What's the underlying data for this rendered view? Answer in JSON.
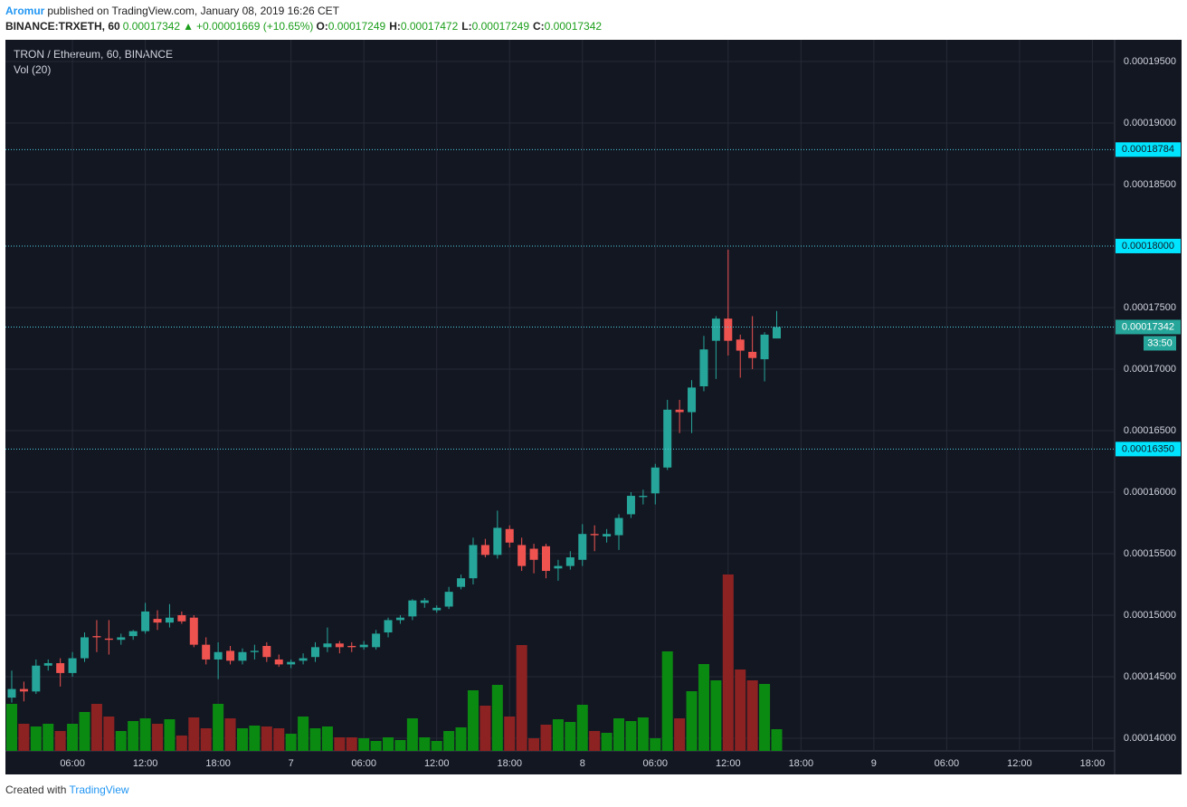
{
  "header": {
    "author": "Aromur",
    "published": "published on TradingView.com, January 08, 2019 16:26 CET",
    "symbol": "BINANCE:TRXETH, 60",
    "last": "0.00017342",
    "arrow": "▲",
    "change": "+0.00001669 (+10.65%)",
    "ohlc": [
      {
        "label": "O:",
        "value": "0.00017249"
      },
      {
        "label": "H:",
        "value": "0.00017472"
      },
      {
        "label": "L:",
        "value": "0.00017249"
      },
      {
        "label": "C:",
        "value": "0.00017342"
      }
    ]
  },
  "chart_data": {
    "type": "candlestick",
    "title": "TRON / Ethereum, 60, BINANCE",
    "volume_label": "Vol (20)",
    "countdown": "33:50",
    "up_color": "#26a69a",
    "down_color": "#ef5350",
    "volume_up_color": "#0b8a12",
    "volume_down_color": "#8c2222",
    "grid": true,
    "x": [
      1,
      2,
      3,
      4,
      5,
      6,
      7,
      8,
      9,
      10,
      11,
      12,
      13,
      14,
      15,
      16,
      17,
      18,
      19,
      20,
      21,
      22,
      23,
      24,
      25,
      26,
      27,
      28,
      29,
      30,
      31,
      32,
      33,
      34,
      35,
      36,
      37,
      38,
      39,
      40,
      41,
      42,
      43,
      44,
      45,
      46,
      47,
      48,
      49,
      50,
      51,
      52,
      53,
      54,
      55,
      56,
      57,
      58,
      59,
      60,
      61,
      62,
      63,
      64
    ],
    "open": [
      0.0001433,
      0.000144,
      0.0001438,
      0.0001459,
      0.0001461,
      0.0001453,
      0.0001465,
      0.0001483,
      0.0001481,
      0.000148,
      0.0001483,
      0.0001487,
      0.0001497,
      0.0001494,
      0.00015,
      0.0001498,
      0.0001476,
      0.0001464,
      0.0001471,
      0.0001463,
      0.000147,
      0.0001475,
      0.0001464,
      0.000146,
      0.0001463,
      0.0001466,
      0.0001474,
      0.0001477,
      0.0001475,
      0.0001474,
      0.0001474,
      0.0001486,
      0.0001496,
      0.0001499,
      0.000151,
      0.0001504,
      0.0001507,
      0.0001523,
      0.000153,
      0.0001557,
      0.0001549,
      0.000157,
      0.0001557,
      0.0001554,
      0.0001556,
      0.0001538,
      0.000154,
      0.0001545,
      0.0001566,
      0.0001564,
      0.0001565,
      0.0001582,
      0.0001596,
      0.0001599,
      0.000162,
      0.0001667,
      0.0001665,
      0.0001686,
      0.0001723,
      0.0001741,
      0.0001724,
      0.0001714,
      0.0001708,
      0.00017249
    ],
    "high": [
      0.0001455,
      0.0001446,
      0.0001464,
      0.0001464,
      0.0001465,
      0.000147,
      0.0001486,
      0.0001496,
      0.0001496,
      0.0001485,
      0.0001488,
      0.000151,
      0.0001504,
      0.0001509,
      0.0001503,
      0.00015,
      0.0001482,
      0.0001478,
      0.0001475,
      0.0001473,
      0.0001476,
      0.0001478,
      0.0001468,
      0.0001464,
      0.0001469,
      0.0001478,
      0.000149,
      0.0001479,
      0.0001478,
      0.0001479,
      0.0001488,
      0.0001498,
      0.00015,
      0.0001513,
      0.0001514,
      0.0001508,
      0.0001523,
      0.0001533,
      0.0001563,
      0.0001562,
      0.0001585,
      0.0001573,
      0.0001563,
      0.0001558,
      0.0001558,
      0.0001545,
      0.0001552,
      0.0001574,
      0.0001573,
      0.000157,
      0.0001582,
      0.00016,
      0.0001602,
      0.0001623,
      0.0001675,
      0.0001675,
      0.0001691,
      0.0001727,
      0.0001743,
      0.0001797,
      0.0001728,
      0.0001743,
      0.000173,
      0.00017472
    ],
    "low": [
      0.0001429,
      0.000143,
      0.0001436,
      0.0001455,
      0.0001442,
      0.000145,
      0.0001462,
      0.000147,
      0.0001468,
      0.0001476,
      0.000148,
      0.0001485,
      0.0001488,
      0.000149,
      0.0001493,
      0.0001474,
      0.000146,
      0.0001448,
      0.000146,
      0.000146,
      0.0001464,
      0.0001462,
      0.0001458,
      0.0001457,
      0.000146,
      0.0001462,
      0.000147,
      0.0001469,
      0.000147,
      0.0001472,
      0.0001472,
      0.0001482,
      0.0001493,
      0.0001496,
      0.0001506,
      0.0001502,
      0.0001505,
      0.0001521,
      0.0001525,
      0.0001547,
      0.0001546,
      0.0001555,
      0.0001536,
      0.0001534,
      0.000153,
      0.0001528,
      0.0001537,
      0.000154,
      0.0001552,
      0.0001559,
      0.0001553,
      0.0001579,
      0.000159,
      0.000159,
      0.0001618,
      0.0001648,
      0.0001648,
      0.0001682,
      0.0001692,
      0.0001711,
      0.0001693,
      0.00017,
      0.000169,
      0.00017249
    ],
    "close": [
      0.000144,
      0.0001438,
      0.0001459,
      0.0001461,
      0.0001453,
      0.0001465,
      0.0001482,
      0.0001482,
      0.000148,
      0.0001482,
      0.0001487,
      0.0001503,
      0.0001494,
      0.0001498,
      0.0001495,
      0.0001476,
      0.0001464,
      0.000147,
      0.0001463,
      0.000147,
      0.0001471,
      0.0001466,
      0.000146,
      0.0001462,
      0.0001465,
      0.0001474,
      0.0001477,
      0.0001474,
      0.0001474,
      0.0001476,
      0.0001485,
      0.0001496,
      0.0001498,
      0.0001512,
      0.0001512,
      0.0001506,
      0.0001519,
      0.000153,
      0.0001557,
      0.0001549,
      0.0001571,
      0.0001559,
      0.000154,
      0.0001545,
      0.0001536,
      0.000154,
      0.0001547,
      0.0001566,
      0.0001565,
      0.0001566,
      0.0001579,
      0.0001597,
      0.0001597,
      0.000162,
      0.0001667,
      0.0001665,
      0.0001685,
      0.0001716,
      0.0001741,
      0.0001723,
      0.0001715,
      0.0001709,
      0.0001728,
      0.00017342
    ],
    "volume": [
      52,
      30,
      27,
      30,
      22,
      30,
      43,
      52,
      38,
      22,
      33,
      36,
      30,
      35,
      17,
      37,
      25,
      52,
      36,
      25,
      28,
      27,
      25,
      19,
      38,
      25,
      27,
      15,
      15,
      14,
      11,
      15,
      12,
      36,
      15,
      11,
      22,
      26,
      67,
      50,
      73,
      38,
      117,
      14,
      29,
      35,
      32,
      51,
      22,
      20,
      36,
      33,
      37,
      14,
      110,
      36,
      66,
      96,
      78,
      195,
      90,
      78,
      74,
      24
    ],
    "xlim": [
      0.48,
      91.83
    ],
    "xticks": [
      {
        "value": 6,
        "label": "06:00"
      },
      {
        "value": 12,
        "label": "12:00"
      },
      {
        "value": 18,
        "label": "18:00"
      },
      {
        "value": 24,
        "label": "7"
      },
      {
        "value": 30,
        "label": "06:00"
      },
      {
        "value": 36,
        "label": "12:00"
      },
      {
        "value": 42,
        "label": "18:00"
      },
      {
        "value": 48,
        "label": "8"
      },
      {
        "value": 54,
        "label": "06:00"
      },
      {
        "value": 60,
        "label": "12:00"
      },
      {
        "value": 66,
        "label": "18:00"
      },
      {
        "value": 72,
        "label": "9"
      },
      {
        "value": 78,
        "label": "06:00"
      },
      {
        "value": 84,
        "label": "12:00"
      },
      {
        "value": 90,
        "label": "18:00"
      }
    ],
    "ylim": [
      0.00013897,
      0.00019676
    ],
    "yticks": [
      {
        "value": 0.000195,
        "label": "0.00019500"
      },
      {
        "value": 0.00019,
        "label": "0.00019000"
      },
      {
        "value": 0.000185,
        "label": "0.00018500"
      },
      {
        "value": 0.000175,
        "label": "0.00017500"
      },
      {
        "value": 0.00017,
        "label": "0.00017000"
      },
      {
        "value": 0.000165,
        "label": "0.00016500"
      },
      {
        "value": 0.00016,
        "label": "0.00016000"
      },
      {
        "value": 0.000155,
        "label": "0.00015500"
      },
      {
        "value": 0.00015,
        "label": "0.00015000"
      },
      {
        "value": 0.000145,
        "label": "0.00014500"
      },
      {
        "value": 0.00014,
        "label": "0.00014000"
      }
    ],
    "hlines": [
      {
        "value": 0.00018784,
        "label": "0.00018784"
      },
      {
        "value": 0.00018,
        "label": "0.00018000"
      },
      {
        "value": 0.0001635,
        "label": "0.00016350"
      }
    ],
    "price_line": {
      "value": 0.00017342,
      "label": "0.00017342"
    }
  },
  "footer": {
    "text": "Created with",
    "brand": "TradingView"
  }
}
